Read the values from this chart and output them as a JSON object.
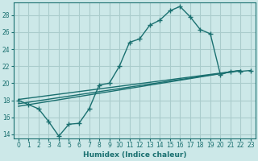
{
  "xlabel": "Humidex (Indice chaleur)",
  "ylabel": "",
  "bg_color": "#cce8e8",
  "grid_color": "#aacccc",
  "line_color": "#1a7070",
  "xlim": [
    -0.5,
    23.5
  ],
  "ylim": [
    13.5,
    29.5
  ],
  "xticks": [
    0,
    1,
    2,
    3,
    4,
    5,
    6,
    7,
    8,
    9,
    10,
    11,
    12,
    13,
    14,
    15,
    16,
    17,
    18,
    19,
    20,
    21,
    22,
    23
  ],
  "yticks": [
    14,
    16,
    18,
    20,
    22,
    24,
    26,
    28
  ],
  "line1_x": [
    0,
    1,
    2,
    3,
    4,
    5,
    6,
    7,
    8,
    9,
    10,
    11,
    12,
    13,
    14,
    15,
    16,
    17,
    18,
    19,
    20,
    21,
    22,
    23
  ],
  "line1_y": [
    18,
    17.5,
    17,
    15.5,
    13.8,
    15.2,
    15.3,
    17.0,
    19.8,
    20.0,
    22.0,
    24.8,
    25.2,
    26.8,
    27.4,
    28.5,
    29.0,
    27.8,
    26.3,
    25.8,
    21.0,
    21.4,
    21.4,
    21.5
  ],
  "line2_x": [
    0,
    22
  ],
  "line2_y": [
    18.1,
    21.5
  ],
  "line3_x": [
    0,
    22
  ],
  "line3_y": [
    17.6,
    21.5
  ],
  "line4_x": [
    0,
    22
  ],
  "line4_y": [
    17.3,
    21.5
  ],
  "marker": "P",
  "markersize": 2.5,
  "linewidth": 1.0
}
